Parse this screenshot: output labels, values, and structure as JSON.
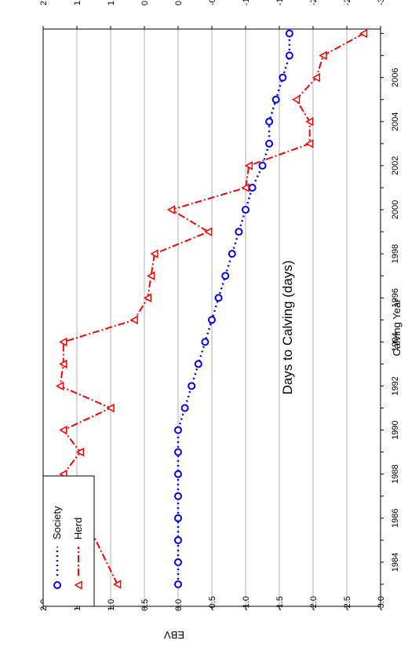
{
  "chart_data": {
    "type": "line",
    "title": "Days to Calving (days)",
    "xlabel": "Calving Year",
    "ylabel": "EBV",
    "xlim": [
      1982,
      2008.2
    ],
    "ylim": [
      2.0,
      -3.0
    ],
    "x_ticks": [
      "1984",
      "1986",
      "1988",
      "1990",
      "1992",
      "1994",
      "1996",
      "1998",
      "2000",
      "2002",
      "2004",
      "2006"
    ],
    "y_ticks": [
      "2.0",
      "1.5",
      "1.0",
      "0.5",
      "0.0",
      "-0.5",
      "-1.0",
      "-1.5",
      "-2.0",
      "-2.5",
      "-3.0"
    ],
    "grid": "horizontal",
    "orientation": "rotated-90",
    "legend_position": "bottom-left",
    "series": [
      {
        "name": "Society",
        "color": "#0000ff",
        "marker": "circle",
        "line": "dotted",
        "x": [
          1983,
          1984,
          1985,
          1986,
          1987,
          1988,
          1989,
          1990,
          1991,
          1992,
          1993,
          1994,
          1995,
          1996,
          1997,
          1998,
          1999,
          2000,
          2001,
          2002,
          2003,
          2004,
          2005,
          2006,
          2007,
          2008
        ],
        "values": [
          0.0,
          0.0,
          0.0,
          0.0,
          0.0,
          0.0,
          0.0,
          0.0,
          -0.1,
          -0.2,
          -0.3,
          -0.4,
          -0.5,
          -0.6,
          -0.7,
          -0.8,
          -0.9,
          -1.0,
          -1.1,
          -1.25,
          -1.35,
          -1.35,
          -1.45,
          -1.55,
          -1.65,
          -1.65
        ]
      },
      {
        "name": "Herd",
        "color": "#ff0000",
        "marker": "triangle",
        "line": "dash-dot",
        "x": [
          1983,
          1988,
          1989,
          1990,
          1991,
          1992,
          1993,
          1994,
          1995,
          1996,
          1997,
          1998,
          1999,
          2000,
          2001,
          2002,
          2003,
          2004,
          2005,
          2006,
          2007,
          2008
        ],
        "values": [
          0.9,
          1.7,
          1.45,
          1.7,
          1.0,
          1.75,
          1.7,
          1.7,
          0.65,
          0.45,
          0.4,
          0.35,
          -0.45,
          0.1,
          -1.0,
          -1.05,
          -1.95,
          -1.95,
          -1.75,
          -2.05,
          -2.15,
          -2.75
        ]
      }
    ]
  }
}
